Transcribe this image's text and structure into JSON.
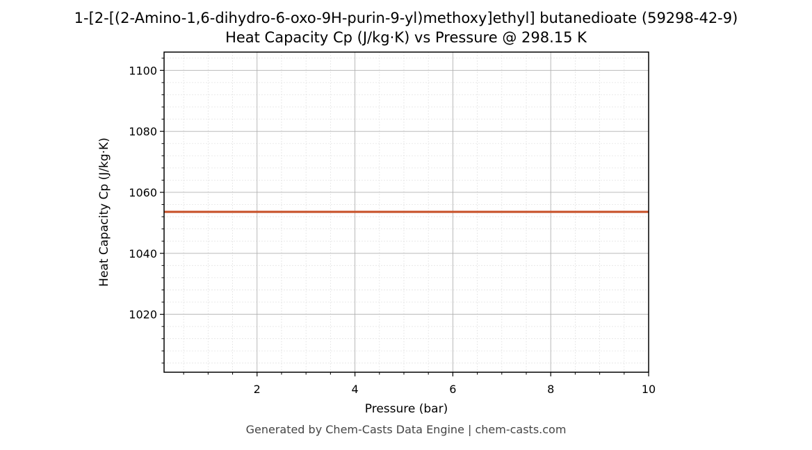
{
  "chart_data": {
    "type": "line",
    "title": "1-[2-[(2-Amino-1,6-dihydro-6-oxo-9H-purin-9-yl)methoxy]ethyl] butanedioate (59298-42-9)",
    "subtitle": "Heat Capacity Cp (J/kg·K) vs Pressure @ 298.15 K",
    "xlabel": "Pressure (bar)",
    "ylabel": "Heat Capacity Cp (J/kg·K)",
    "xlim": [
      0.1,
      10
    ],
    "ylim": [
      1001,
      1106
    ],
    "xticks": [
      2,
      4,
      6,
      8,
      10
    ],
    "yticks": [
      1020,
      1040,
      1060,
      1080,
      1100
    ],
    "x_minor_step": 0.5,
    "y_minor_step": 4,
    "grid": "major and minor",
    "line_color": "#c8522a",
    "series": [
      {
        "x": [
          0.1,
          1,
          2,
          3,
          4,
          5,
          6,
          7,
          8,
          9,
          10
        ],
        "values": [
          1053.6,
          1053.6,
          1053.6,
          1053.6,
          1053.6,
          1053.6,
          1053.6,
          1053.6,
          1053.6,
          1053.6,
          1053.6
        ]
      }
    ]
  },
  "footer": "Generated by Chem-Casts Data Engine | chem-casts.com"
}
